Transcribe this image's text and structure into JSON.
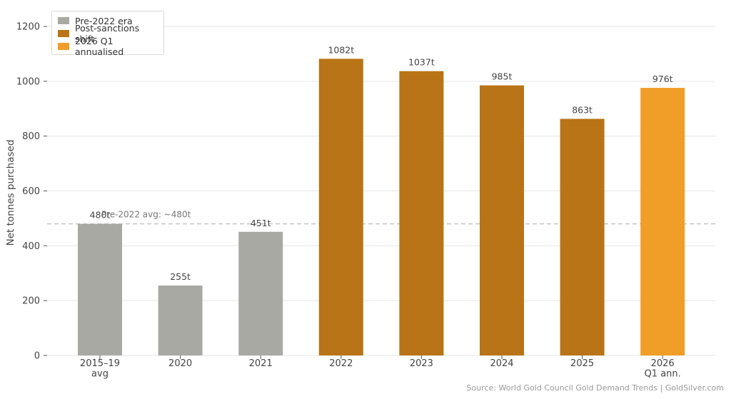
{
  "chart_data": {
    "type": "bar",
    "categories": [
      "2015–19\navg",
      "2020",
      "2021",
      "2022",
      "2023",
      "2024",
      "2025",
      "2026\nQ1 ann."
    ],
    "values": [
      480,
      255,
      451,
      1082,
      1037,
      985,
      863,
      976
    ],
    "data_labels": [
      "480t",
      "255t",
      "451t",
      "1082t",
      "1037t",
      "985t",
      "863t",
      "976t"
    ],
    "groups": [
      "pre",
      "pre",
      "pre",
      "post",
      "post",
      "post",
      "post",
      "q1"
    ],
    "ylabel": "Net tonnes purchased",
    "xlabel": "",
    "ylim": [
      0,
      1260
    ],
    "yticks": [
      0,
      200,
      400,
      600,
      800,
      1000,
      1200
    ],
    "grid": "horizontal",
    "legend_position": "top-left",
    "reference_line": {
      "value": 480,
      "label": "Pre-2022 avg: ~480t",
      "color": "#bbbbbb"
    },
    "legend": [
      {
        "key": "pre",
        "label": "Pre-2022 era",
        "color": "#a9a9a3"
      },
      {
        "key": "post",
        "label": "Post-sanctions shift",
        "color": "#b87416"
      },
      {
        "key": "q1",
        "label": "2026 Q1 annualised",
        "color": "#f09e28"
      }
    ]
  },
  "footer": {
    "source": "Source: World Gold Council Gold Demand Trends  |  GoldSilver.com"
  }
}
